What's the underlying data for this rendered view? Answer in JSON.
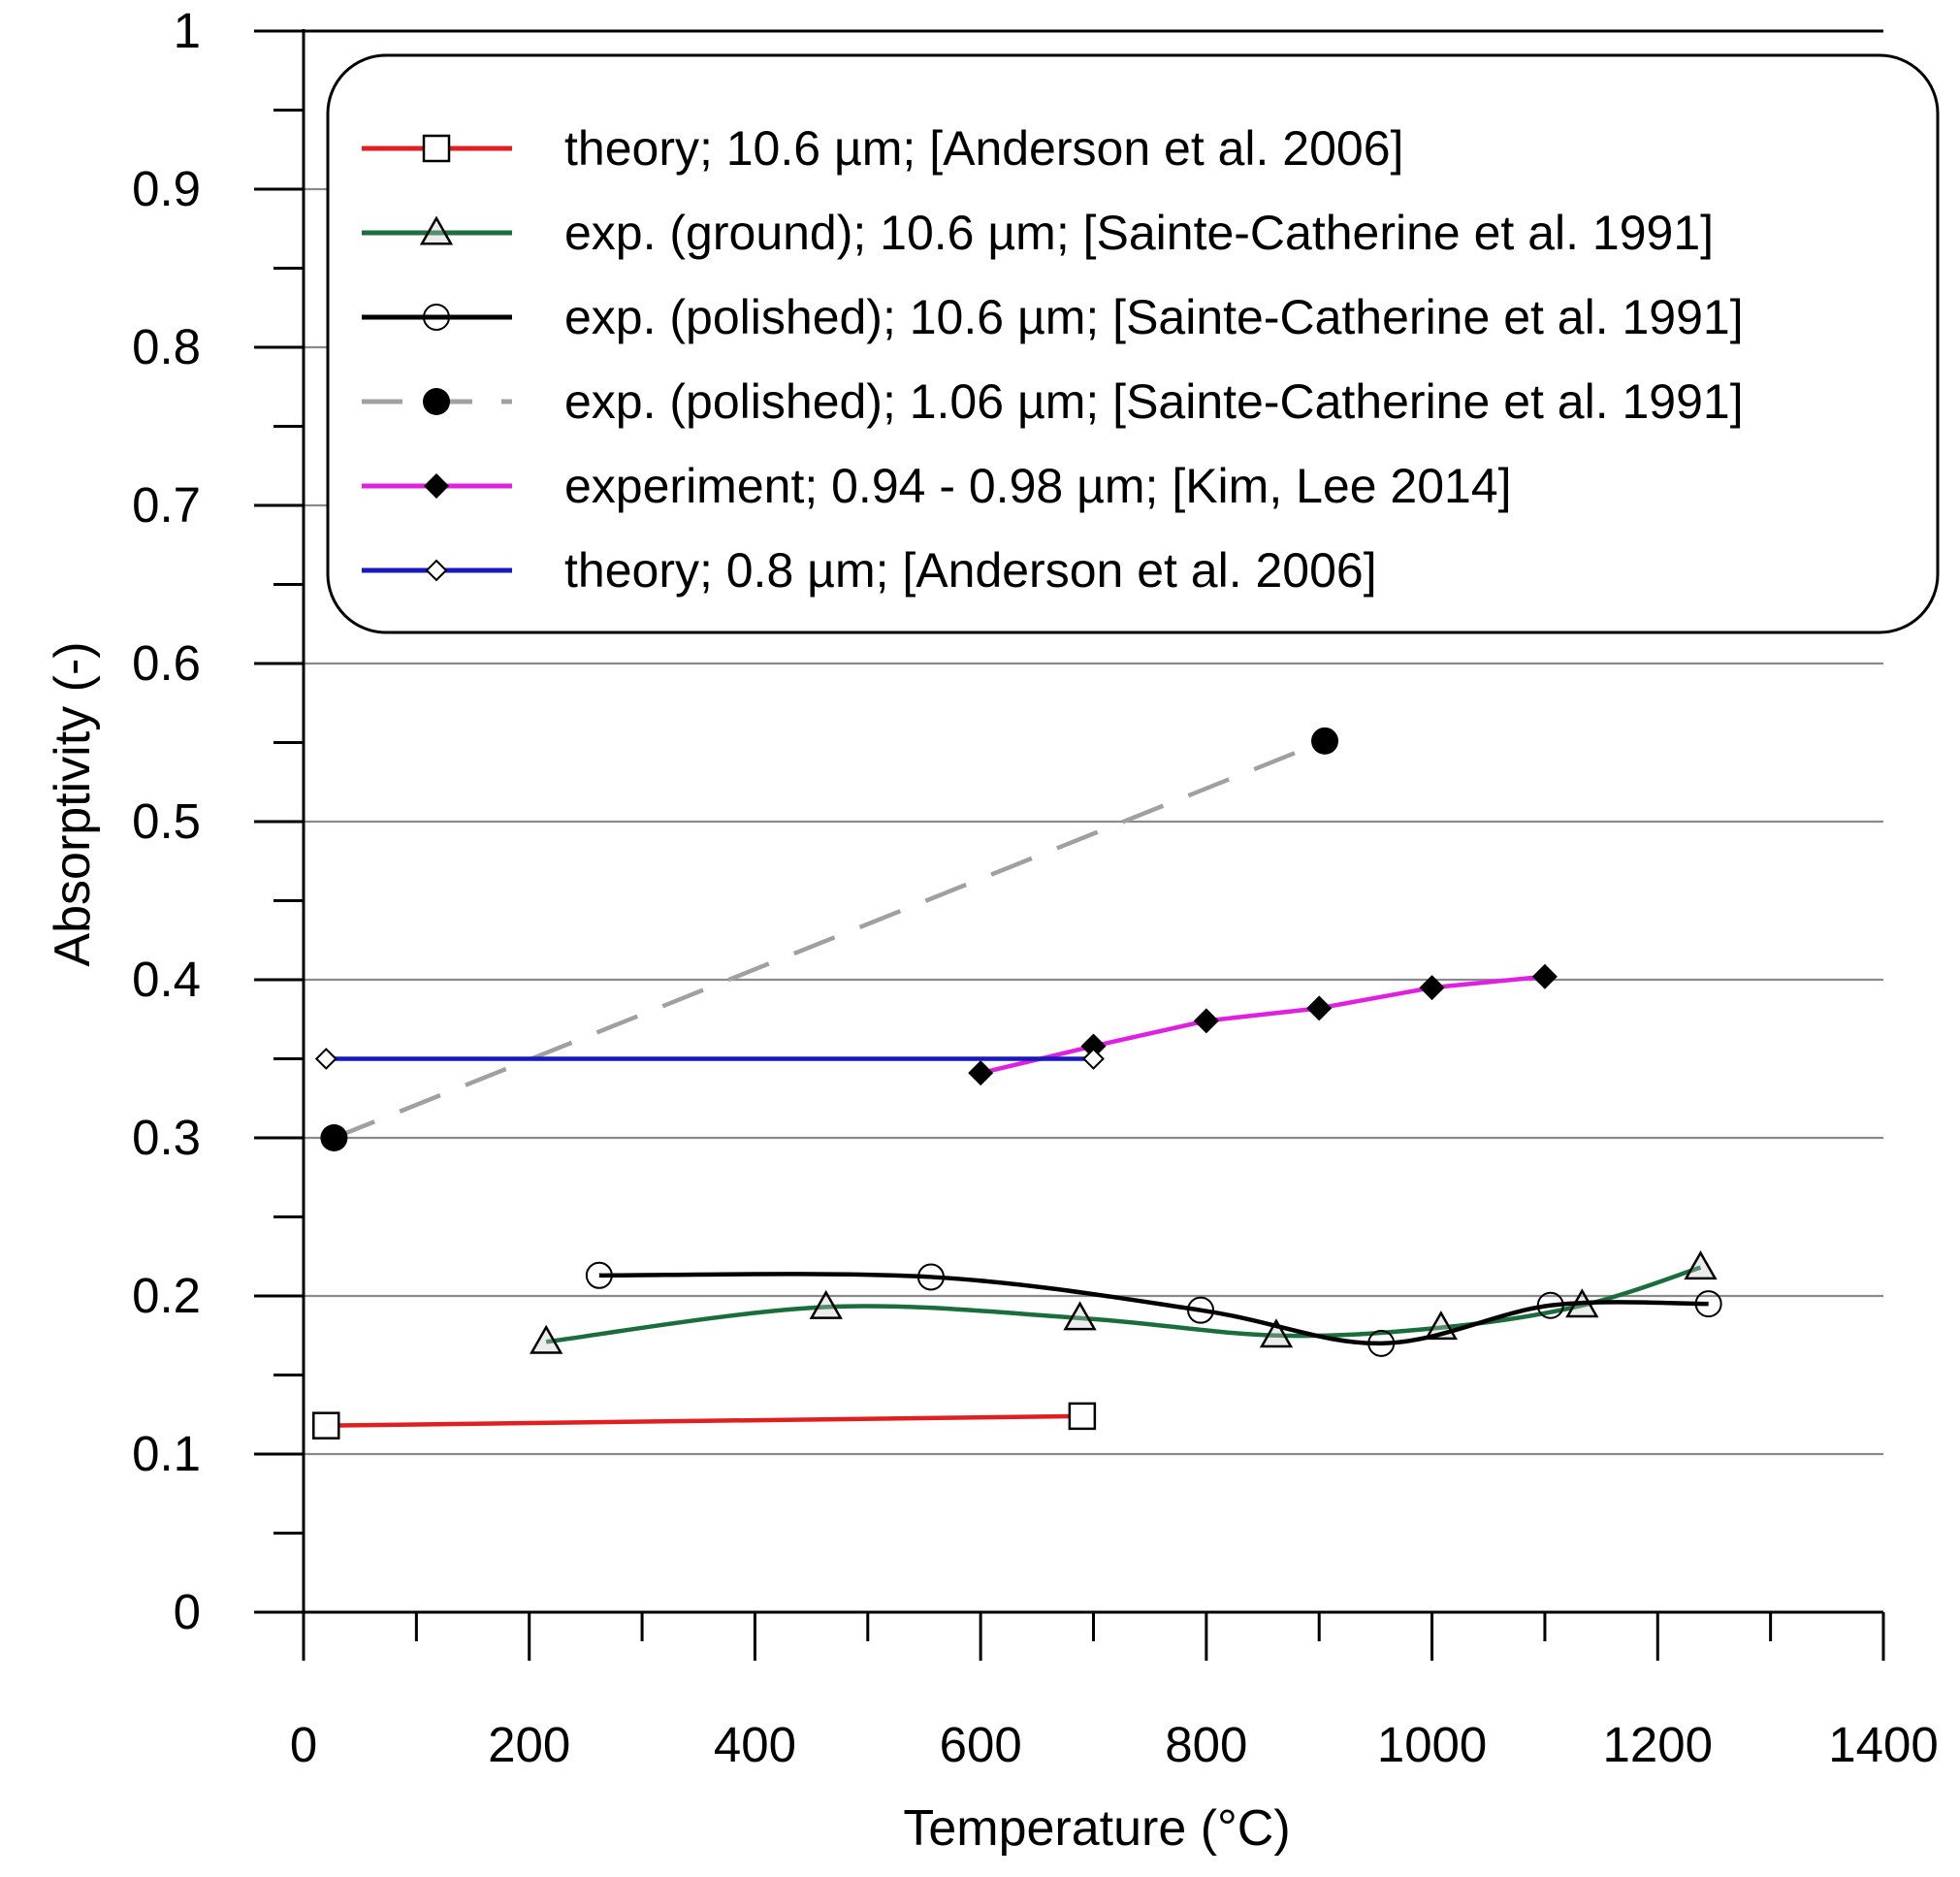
{
  "chart_data": {
    "type": "line",
    "title": "",
    "xlabel": "Temperature (°C)",
    "ylabel": "Absorptivity (-)",
    "xlim": [
      0,
      1400
    ],
    "ylim": [
      0,
      1
    ],
    "x_ticks": [
      0,
      200,
      400,
      600,
      800,
      1000,
      1200,
      1400
    ],
    "x_tick_labels": [
      "0",
      "200",
      "400",
      "600",
      "800",
      "1000",
      "1200",
      "1400"
    ],
    "y_ticks": [
      0,
      0.1,
      0.2,
      0.3,
      0.4,
      0.5,
      0.6,
      0.7,
      0.8,
      0.9,
      1
    ],
    "y_tick_labels": [
      "0",
      "0.1",
      "0.2",
      "0.3",
      "0.4",
      "0.5",
      "0.6",
      "0.7",
      "0.8",
      "0.9",
      "1"
    ],
    "grid": "horizontal",
    "legend_position": "top",
    "series": [
      {
        "name": "theory; 10.6 µm; [Anderson et al. 2006]",
        "color": "#e02020",
        "marker": "square-open",
        "dash": "solid",
        "x": [
          20,
          690
        ],
        "y": [
          0.118,
          0.124
        ]
      },
      {
        "name": "exp. (ground); 10.6 µm; [Sainte-Catherine et al. 1991]",
        "color": "#1a6e3c",
        "marker": "triangle-open",
        "dash": "solid",
        "x": [
          215,
          463,
          688,
          862,
          1008,
          1133,
          1238
        ],
        "y": [
          0.171,
          0.193,
          0.186,
          0.175,
          0.18,
          0.194,
          0.218
        ]
      },
      {
        "name": "exp. (polished); 10.6 µm; [Sainte-Catherine et al. 1991]",
        "color": "#000000",
        "marker": "circle-open",
        "dash": "solid",
        "x": [
          262,
          556,
          795,
          955,
          1105,
          1245
        ],
        "y": [
          0.213,
          0.212,
          0.191,
          0.17,
          0.194,
          0.195
        ]
      },
      {
        "name": "exp. (polished); 1.06 µm; [Sainte-Catherine et al. 1991]",
        "color": "#a0a0a0",
        "marker": "circle-filled",
        "dash": "dashed",
        "x": [
          27,
          905
        ],
        "y": [
          0.3,
          0.551
        ]
      },
      {
        "name": "experiment; 0.94 - 0.98 µm; [Kim, Lee 2014]",
        "color": "#e020e0",
        "marker": "diamond-filled",
        "dash": "solid",
        "x": [
          600,
          700,
          800,
          900,
          1000,
          1100
        ],
        "y": [
          0.341,
          0.358,
          0.374,
          0.382,
          0.395,
          0.402
        ]
      },
      {
        "name": "theory; 0.8 µm; [Anderson et al. 2006]",
        "color": "#1818c0",
        "marker": "diamond-open",
        "dash": "solid",
        "x": [
          20,
          700
        ],
        "y": [
          0.35,
          0.35
        ]
      }
    ]
  }
}
